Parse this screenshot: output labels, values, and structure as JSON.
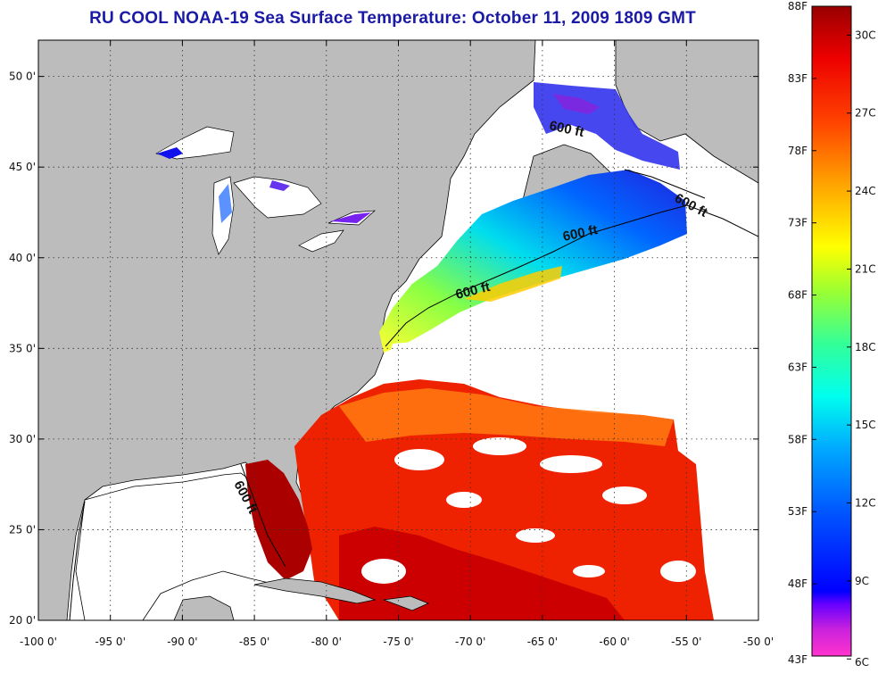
{
  "title": "RU COOL  NOAA-19  Sea Surface Temperature:  October 11, 2009 1809 GMT",
  "map": {
    "lon_range": [
      -100,
      -50
    ],
    "lat_range": [
      20,
      52
    ],
    "grid": "dotted",
    "lon_ticks": [
      {
        "value": -100,
        "label": "-100 0'"
      },
      {
        "value": -95,
        "label": "-95 0'"
      },
      {
        "value": -90,
        "label": "-90 0'"
      },
      {
        "value": -85,
        "label": "-85 0'"
      },
      {
        "value": -80,
        "label": "-80 0'"
      },
      {
        "value": -75,
        "label": "-75 0'"
      },
      {
        "value": -70,
        "label": "-70 0'"
      },
      {
        "value": -65,
        "label": "-65 0'"
      },
      {
        "value": -60,
        "label": "-60 0'"
      },
      {
        "value": -55,
        "label": "-55 0'"
      },
      {
        "value": -50,
        "label": "-50 0'"
      }
    ],
    "lat_ticks": [
      {
        "value": 50,
        "label": "50 0'"
      },
      {
        "value": 45,
        "label": "45 0'"
      },
      {
        "value": 40,
        "label": "40 0'"
      },
      {
        "value": 35,
        "label": "35 0'"
      },
      {
        "value": 30,
        "label": "30 0'"
      },
      {
        "value": 25,
        "label": "25 0'"
      },
      {
        "value": 20,
        "label": "20 0'"
      }
    ],
    "contour_labels": [
      "600 ft",
      "600 ft",
      "600 ft",
      "600 ft",
      "600 ft"
    ],
    "colors": {
      "land": "#bcbcbc",
      "cloud": "#ffffff",
      "coastline": "#000000"
    }
  },
  "colorbar": {
    "min_f": 43,
    "max_f": 88,
    "fahrenheit_labels": [
      "88F",
      "83F",
      "78F",
      "73F",
      "68F",
      "63F",
      "58F",
      "53F",
      "48F",
      "43F"
    ],
    "celsius_labels": [
      "30C",
      "27C",
      "24C",
      "21C",
      "18C",
      "15C",
      "12C",
      "9C",
      "6C"
    ],
    "celsius_values": [
      30,
      27,
      24,
      21,
      18,
      15,
      12,
      9,
      6
    ],
    "stops": [
      "#ff33cc",
      "#aa22ee",
      "#0000ff",
      "#0066ff",
      "#00ccff",
      "#00ffcc",
      "#33ff66",
      "#ccff00",
      "#ffff00",
      "#ffaa00",
      "#ff4400",
      "#ff0000",
      "#990000"
    ]
  }
}
